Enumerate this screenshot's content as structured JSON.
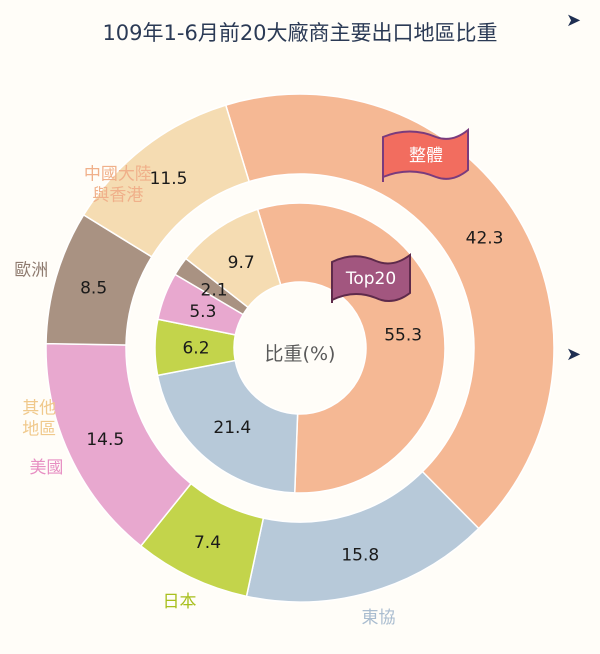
{
  "chart_data": {
    "type": "donut",
    "title": "109年1-6月前20大廠商主要出口地區比重",
    "center_label": "比重(%)",
    "series": [
      {
        "name": "整體",
        "values": [
          42.3,
          15.8,
          7.4,
          14.5,
          8.5,
          11.5
        ],
        "categories": [
          "中國大陸與香港",
          "東協",
          "日本",
          "美國",
          "歐洲",
          "其他地區"
        ]
      },
      {
        "name": "Top20",
        "values": [
          55.3,
          21.4,
          6.2,
          5.3,
          2.1,
          9.7
        ],
        "categories": [
          "中國大陸與香港",
          "東協",
          "日本",
          "美國",
          "歐洲",
          "其他地區"
        ]
      }
    ],
    "category_labels": [
      [
        "中國大陸",
        "與香港"
      ],
      [
        "東協"
      ],
      [
        "日本"
      ],
      [
        "美國"
      ],
      [
        "歐洲"
      ],
      [
        "其他",
        "地區"
      ]
    ],
    "colors": [
      "#f5b894",
      "#b7c9d9",
      "#c3d44b",
      "#e8a8cf",
      "#a99282",
      "#f5dcb2"
    ],
    "label_colors": [
      "#f0b08a",
      "#a9bccf",
      "#a8bf1e",
      "#e78fc3",
      "#8e7a6e",
      "#f0c98c"
    ],
    "flags": {
      "outer": {
        "text": "整體",
        "fill": "#f26d5f"
      },
      "inner": {
        "text": "Top20",
        "fill": "#a2567f"
      }
    },
    "arrows": [
      "➤",
      "➤"
    ]
  }
}
